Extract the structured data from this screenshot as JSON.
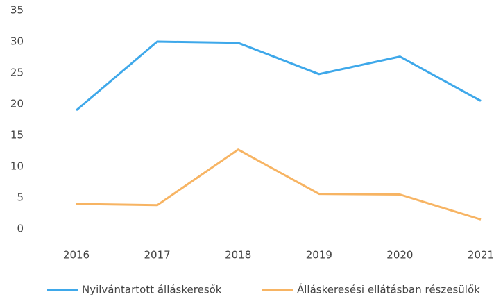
{
  "chart_data": {
    "type": "line",
    "categories": [
      "2016",
      "2017",
      "2018",
      "2019",
      "2020",
      "2021"
    ],
    "series": [
      {
        "name": "Nyilvántartott álláskeresők",
        "color": "#3ea8ea",
        "values": [
          19,
          30,
          29.8,
          24.8,
          27.6,
          20.5
        ]
      },
      {
        "name": "Álláskeresési ellátásban részesülők",
        "color": "#f7b463",
        "values": [
          4,
          3.8,
          12.7,
          5.6,
          5.5,
          1.5
        ]
      }
    ],
    "ylim": [
      0,
      35
    ],
    "yticks": [
      0,
      5,
      10,
      15,
      20,
      25,
      30,
      35
    ],
    "grid": false,
    "legend": "bottom"
  }
}
